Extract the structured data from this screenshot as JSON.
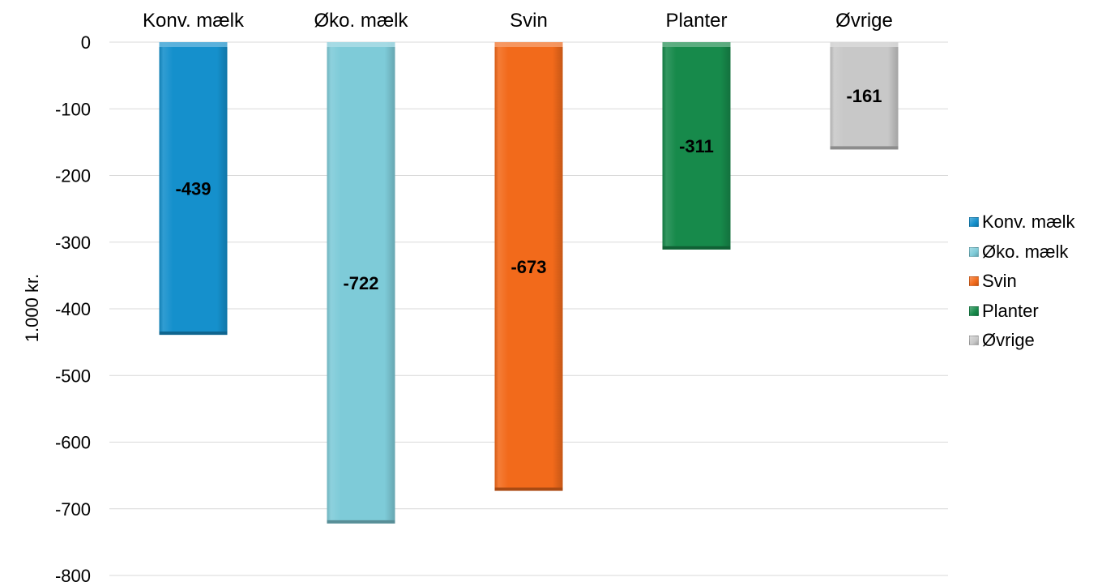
{
  "chart_data": {
    "type": "bar",
    "categories": [
      "Konv. mælk",
      "Øko. mælk",
      "Svin",
      "Planter",
      "Øvrige"
    ],
    "values": [
      -439,
      -722,
      -673,
      -311,
      -161
    ],
    "data_labels": [
      "-439",
      "-722",
      "-673",
      "-311",
      "-161"
    ],
    "colors": [
      "#1590cc",
      "#7ecbd8",
      "#f26a1b",
      "#178a4b",
      "#c8c8c8"
    ],
    "ylabel": "1.000 kr.",
    "ylim": [
      -800,
      0
    ],
    "yticks": [
      0,
      -100,
      -200,
      -300,
      -400,
      -500,
      -600,
      -700,
      -800
    ],
    "ytick_labels": [
      "0",
      "-100",
      "-200",
      "-300",
      "-400",
      "-500",
      "-600",
      "-700",
      "-800"
    ],
    "category_axis_position": "top",
    "grid": true,
    "legend_position": "right",
    "legend": [
      "Konv. mælk",
      "Øko. mælk",
      "Svin",
      "Planter",
      "Øvrige"
    ]
  }
}
